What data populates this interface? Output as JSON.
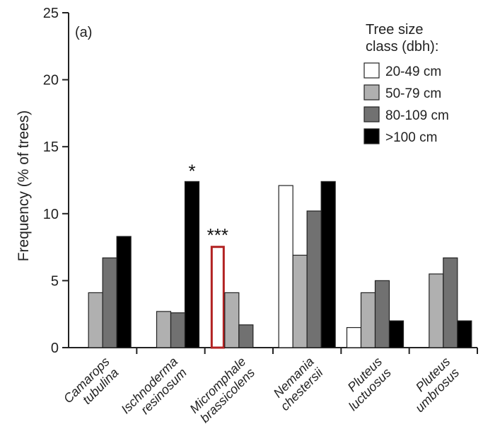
{
  "chart_data": {
    "type": "bar",
    "panel_label": "(a)",
    "ylabel": "Frequency (% of trees)",
    "xlabel": "",
    "ylim": [
      0,
      25
    ],
    "yticks": [
      0,
      5,
      10,
      15,
      20,
      25
    ],
    "categories": [
      [
        "Camarops",
        "tubulina"
      ],
      [
        "Ischnoderma",
        "resinosum"
      ],
      [
        "Micromphale",
        "brassicolens"
      ],
      [
        "Nemania",
        "chestersii"
      ],
      [
        "Pluteus",
        "luctuosus"
      ],
      [
        "Pluteus",
        "umbrosus"
      ]
    ],
    "legend": {
      "title": [
        "Tree size",
        "class (dbh):"
      ],
      "position": "top-right"
    },
    "series": [
      {
        "name": "20-49 cm",
        "color": "#ffffff",
        "values": [
          0,
          0,
          7.6,
          12.1,
          1.5,
          0
        ]
      },
      {
        "name": "50-79 cm",
        "color": "#b0b0b0",
        "values": [
          4.1,
          2.7,
          4.1,
          6.9,
          4.1,
          5.5
        ]
      },
      {
        "name": "80-109 cm",
        "color": "#717171",
        "values": [
          6.7,
          2.6,
          1.7,
          10.2,
          5.0,
          6.7
        ]
      },
      {
        "name": ">100 cm",
        "color": "#000000",
        "values": [
          8.3,
          12.4,
          0,
          12.4,
          2.0,
          2.0
        ]
      }
    ],
    "highlight": {
      "series": 0,
      "category": 2,
      "color": "#b22222"
    },
    "annotations": [
      {
        "text": "*",
        "category": 1,
        "series": 3
      },
      {
        "text": "***",
        "category": 2,
        "series": 0
      }
    ]
  }
}
